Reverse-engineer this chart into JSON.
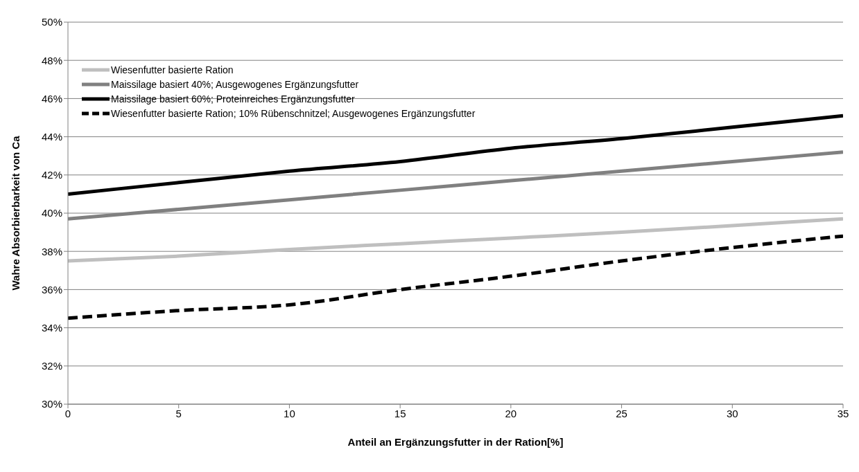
{
  "chart_data": {
    "type": "line",
    "xlabel": "Anteil an Ergänzungsfutter in der Ration[%]",
    "ylabel": "Wahre Absorbierbarkeit von Ca",
    "x": [
      0,
      5,
      10,
      15,
      20,
      25,
      30,
      35
    ],
    "series": [
      {
        "name": "Wiesenfutter basierte Ration",
        "color": "#bfbfbf",
        "line_style": "solid",
        "values": [
          37.5,
          37.75,
          38.1,
          38.4,
          38.7,
          39.0,
          39.35,
          39.7
        ]
      },
      {
        "name": "Maissilage basiert 40%; Ausgewogenes Ergänzungsfutter",
        "color": "#808080",
        "line_style": "solid",
        "values": [
          39.7,
          40.2,
          40.7,
          41.2,
          41.7,
          42.2,
          42.7,
          43.2
        ]
      },
      {
        "name": "Maissilage basiert 60%; Proteinreiches Ergänzungsfutter",
        "color": "#000000",
        "line_style": "solid",
        "values": [
          41.0,
          41.6,
          42.2,
          42.7,
          43.4,
          43.9,
          44.5,
          45.1
        ]
      },
      {
        "name": "Wiesenfutter basierte Ration; 10% Rübenschnitzel; Ausgewogenes Ergänzungsfutter",
        "color": "#000000",
        "line_style": "dashed",
        "values": [
          34.5,
          34.9,
          35.2,
          36.0,
          36.7,
          37.5,
          38.2,
          38.8
        ]
      }
    ],
    "xlim": [
      0,
      35
    ],
    "xticks": [
      0,
      5,
      10,
      15,
      20,
      25,
      30,
      35
    ],
    "ylim": [
      30,
      50
    ],
    "yticks": [
      {
        "value": 30,
        "label": "30%"
      },
      {
        "value": 32,
        "label": "32%"
      },
      {
        "value": 34,
        "label": "34%"
      },
      {
        "value": 36,
        "label": "36%"
      },
      {
        "value": 38,
        "label": "38%"
      },
      {
        "value": 40,
        "label": "40%"
      },
      {
        "value": 42,
        "label": "42%"
      },
      {
        "value": 44,
        "label": "44%"
      },
      {
        "value": 46,
        "label": "46%"
      },
      {
        "value": 48,
        "label": "48%"
      },
      {
        "value": 50,
        "label": "50%"
      }
    ],
    "grid": "y",
    "legend": "top left",
    "marker": "none"
  }
}
